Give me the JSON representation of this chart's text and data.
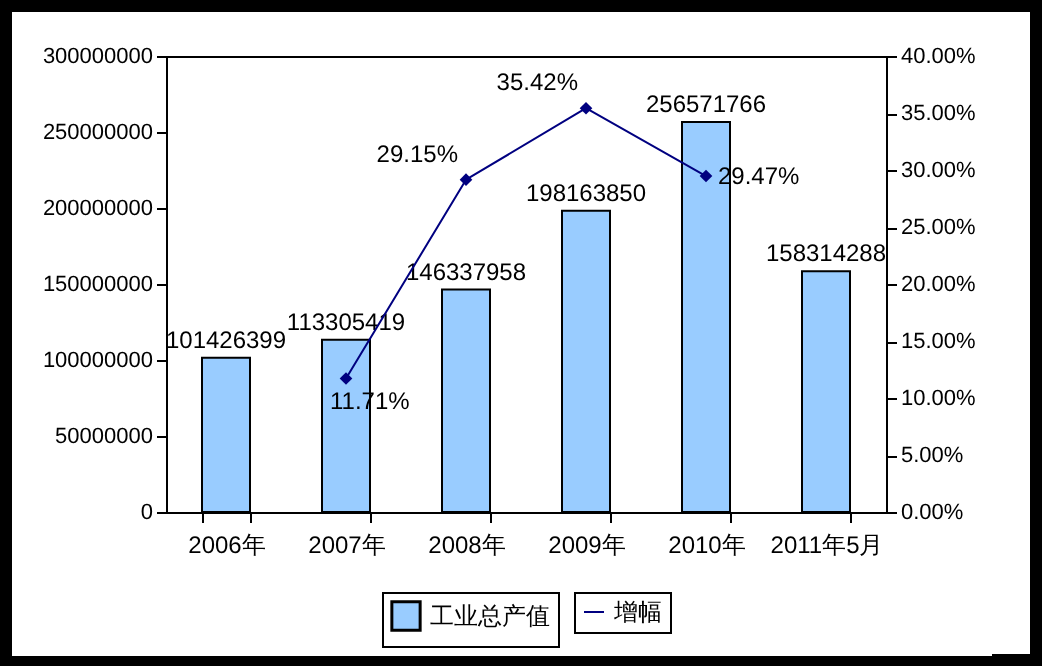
{
  "chart_data": {
    "type": "bar",
    "categories": [
      "2006年",
      "2007年",
      "2008年",
      "2009年",
      "2010年",
      "2011年5月"
    ],
    "series": [
      {
        "name": "工业总产值",
        "type": "bar",
        "color": "#99ccff",
        "values": [
          101426399,
          113305419,
          146337958,
          198163850,
          256571766,
          158314288
        ]
      },
      {
        "name": "增幅",
        "type": "line",
        "axis": "y2",
        "color": "#000080",
        "marker": "diamond",
        "values": [
          null,
          11.71,
          29.15,
          35.42,
          29.47,
          null
        ],
        "value_labels": [
          null,
          "11.71%",
          "29.15%",
          "35.42%",
          "29.47%",
          null
        ]
      }
    ],
    "ylim": [
      0,
      300000000
    ],
    "yticks": [
      0,
      50000000,
      100000000,
      150000000,
      200000000,
      250000000,
      300000000
    ],
    "y2lim": [
      0,
      40
    ],
    "y2ticks": [
      {
        "value": 0,
        "label": "0.00%"
      },
      {
        "value": 5,
        "label": "5.00%"
      },
      {
        "value": 10,
        "label": "10.00%"
      },
      {
        "value": 15,
        "label": "15.00%"
      },
      {
        "value": 20,
        "label": "20.00%"
      },
      {
        "value": 25,
        "label": "25.00%"
      },
      {
        "value": 30,
        "label": "30.00%"
      },
      {
        "value": 35,
        "label": "35.00%"
      },
      {
        "value": 40,
        "label": "40.00%"
      }
    ],
    "data_labels": true,
    "grid": false,
    "legend": "bottom"
  }
}
